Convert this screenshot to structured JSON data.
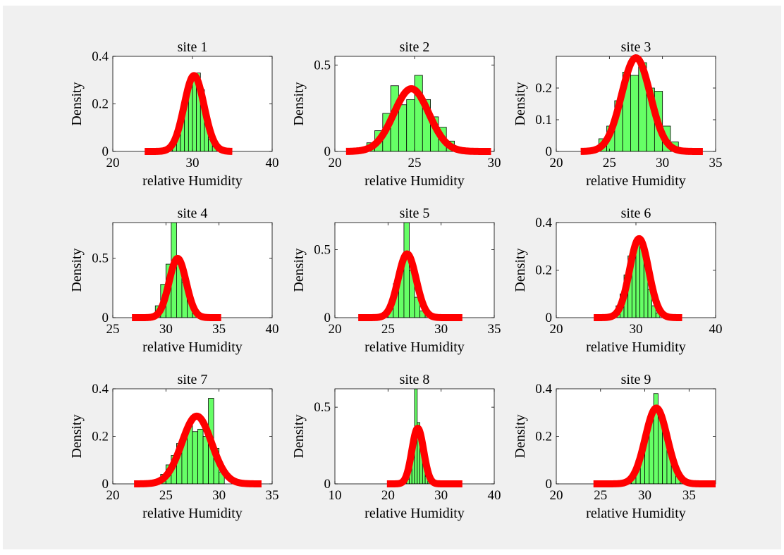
{
  "figure": {
    "background": "#f0f0f0",
    "colors": {
      "histogram_fill": "#66ff66",
      "histogram_edge": "#000000",
      "fit_line": "#ff0000",
      "axes_bg": "#ffffff"
    }
  },
  "chart_data": [
    {
      "type": "bar",
      "title": "site 1",
      "xlabel": "relative Humidity",
      "ylabel": "Density",
      "xlim": [
        20,
        40
      ],
      "ylim": [
        0,
        0.4
      ],
      "xticks": [
        20,
        30,
        40
      ],
      "yticks": [
        0,
        0.2,
        0.4
      ],
      "ytick_labels": [
        "0",
        "0.2",
        "0.4"
      ],
      "histogram": {
        "edges": [
          26.5,
          27,
          27.5,
          28,
          28.5,
          29,
          29.5,
          30,
          30.5,
          31,
          31.5,
          32,
          32.5,
          33
        ],
        "values": [
          0.01,
          0.02,
          0.05,
          0.1,
          0.16,
          0.22,
          0.27,
          0.3,
          0.33,
          0.26,
          0.13,
          0.05,
          0.02
        ]
      },
      "fit": {
        "type": "normal",
        "mean": 30.2,
        "std": 1.25,
        "x_range": [
          24,
          35
        ]
      }
    },
    {
      "type": "bar",
      "title": "site 2",
      "xlabel": "relative Humidity",
      "ylabel": "Density",
      "xlim": [
        20,
        30
      ],
      "ylim": [
        0,
        0.55
      ],
      "xticks": [
        20,
        25,
        30
      ],
      "yticks": [
        0,
        0.5
      ],
      "ytick_labels": [
        "0",
        "0.5"
      ],
      "histogram": {
        "edges": [
          21.5,
          22,
          22.5,
          23,
          23.5,
          24,
          24.5,
          25,
          25.5,
          26,
          26.5,
          27,
          27.5,
          28
        ],
        "values": [
          0.02,
          0.05,
          0.12,
          0.22,
          0.38,
          0.27,
          0.3,
          0.44,
          0.3,
          0.2,
          0.14,
          0.06,
          0.02
        ]
      },
      "fit": {
        "type": "normal",
        "mean": 24.8,
        "std": 1.1,
        "x_range": [
          20.7,
          29.8
        ]
      }
    },
    {
      "type": "bar",
      "title": "site 3",
      "xlabel": "relative Humidity",
      "ylabel": "Density",
      "xlim": [
        20,
        35
      ],
      "ylim": [
        0,
        0.3
      ],
      "xticks": [
        20,
        25,
        30,
        35
      ],
      "yticks": [
        0,
        0.1,
        0.2
      ],
      "ytick_labels": [
        "0",
        "0.1",
        "0.2"
      ],
      "histogram": {
        "edges": [
          24,
          24.75,
          25.5,
          26.25,
          27,
          27.75,
          28.5,
          29.25,
          30,
          30.75,
          31.5
        ],
        "values": [
          0.04,
          0.08,
          0.16,
          0.25,
          0.24,
          0.28,
          0.2,
          0.19,
          0.08,
          0.03
        ]
      },
      "fit": {
        "type": "normal",
        "mean": 27.5,
        "std": 1.35,
        "x_range": [
          22.3,
          33.8
        ]
      }
    },
    {
      "type": "bar",
      "title": "site 4",
      "xlabel": "relative Humidity",
      "ylabel": "Density",
      "xlim": [
        25,
        40
      ],
      "ylim": [
        0,
        0.8
      ],
      "xticks": [
        25,
        30,
        35,
        40
      ],
      "yticks": [
        0,
        0.5
      ],
      "ytick_labels": [
        "0",
        "0.5"
      ],
      "histogram": {
        "edges": [
          28.5,
          29,
          29.5,
          30,
          30.5,
          31,
          31.5,
          32,
          32.5,
          33,
          33.5
        ],
        "values": [
          0.03,
          0.1,
          0.28,
          0.45,
          0.8,
          0.45,
          0.3,
          0.15,
          0.06,
          0.02
        ]
      },
      "fit": {
        "type": "normal",
        "mean": 31.1,
        "std": 0.8,
        "x_range": [
          26.8,
          35.2
        ]
      }
    },
    {
      "type": "bar",
      "title": "site 5",
      "xlabel": "relative Humidity",
      "ylabel": "Density",
      "xlim": [
        20,
        35
      ],
      "ylim": [
        0,
        0.7
      ],
      "xticks": [
        20,
        25,
        30,
        35
      ],
      "yticks": [
        0,
        0.5
      ],
      "ytick_labels": [
        "0",
        "0.5"
      ],
      "histogram": {
        "edges": [
          24.5,
          25,
          25.5,
          26,
          26.5,
          27,
          27.5,
          28,
          28.5,
          29
        ],
        "values": [
          0.03,
          0.1,
          0.25,
          0.38,
          0.7,
          0.35,
          0.15,
          0.05,
          0.02
        ]
      },
      "fit": {
        "type": "normal",
        "mean": 26.8,
        "std": 0.85,
        "x_range": [
          22.2,
          32
        ]
      }
    },
    {
      "type": "bar",
      "title": "site 6",
      "xlabel": "relative Humidity",
      "ylabel": "Density",
      "xlim": [
        20,
        40
      ],
      "ylim": [
        0,
        0.4
      ],
      "xticks": [
        20,
        30,
        40
      ],
      "yticks": [
        0,
        0.2,
        0.4
      ],
      "ytick_labels": [
        "0",
        "0.2",
        "0.4"
      ],
      "histogram": {
        "edges": [
          27,
          27.5,
          28,
          28.5,
          29,
          29.5,
          30,
          30.5,
          31,
          31.5,
          32,
          32.5,
          33
        ],
        "values": [
          0.02,
          0.05,
          0.1,
          0.18,
          0.26,
          0.3,
          0.33,
          0.32,
          0.22,
          0.12,
          0.05,
          0.02
        ]
      },
      "fit": {
        "type": "normal",
        "mean": 30.4,
        "std": 1.2,
        "x_range": [
          24.7,
          35.8
        ]
      }
    },
    {
      "type": "bar",
      "title": "site 7",
      "xlabel": "relative Humidity",
      "ylabel": "Density",
      "xlim": [
        20,
        35
      ],
      "ylim": [
        0,
        0.4
      ],
      "xticks": [
        20,
        25,
        30,
        35
      ],
      "yticks": [
        0,
        0.2,
        0.4
      ],
      "ytick_labels": [
        "0",
        "0.2",
        "0.4"
      ],
      "histogram": {
        "edges": [
          24.5,
          25,
          25.5,
          26,
          26.5,
          27,
          27.5,
          28,
          28.5,
          29,
          29.5,
          30,
          30.5
        ],
        "values": [
          0.04,
          0.08,
          0.12,
          0.17,
          0.21,
          0.26,
          0.22,
          0.23,
          0.2,
          0.36,
          0.15,
          0.05
        ]
      },
      "fit": {
        "type": "normal",
        "mean": 27.9,
        "std": 1.4,
        "x_range": [
          22,
          34
        ]
      }
    },
    {
      "type": "bar",
      "title": "site 8",
      "xlabel": "relative Humidity",
      "ylabel": "Density",
      "xlim": [
        10,
        40
      ],
      "ylim": [
        0,
        0.62
      ],
      "xticks": [
        10,
        20,
        30,
        40
      ],
      "yticks": [
        0,
        0.5
      ],
      "ytick_labels": [
        "0",
        "0.5"
      ],
      "histogram": {
        "edges": [
          23.5,
          24,
          24.5,
          25,
          25.5,
          26,
          26.5,
          27,
          27.5,
          28
        ],
        "values": [
          0.03,
          0.1,
          0.3,
          0.62,
          0.4,
          0.28,
          0.15,
          0.05,
          0.02
        ]
      },
      "fit": {
        "type": "normal",
        "mean": 25.6,
        "std": 1.1,
        "x_range": [
          19.8,
          34
        ]
      }
    },
    {
      "type": "bar",
      "title": "site 9",
      "xlabel": "relative Humidity",
      "ylabel": "Density",
      "xlim": [
        20,
        38
      ],
      "ylim": [
        0,
        0.4
      ],
      "xticks": [
        20,
        25,
        30,
        35
      ],
      "yticks": [
        0,
        0.2,
        0.4
      ],
      "ytick_labels": [
        "0",
        "0.2",
        "0.4"
      ],
      "histogram": {
        "edges": [
          28,
          28.5,
          29,
          29.5,
          30,
          30.5,
          31,
          31.5,
          32,
          32.5,
          33,
          33.5,
          34,
          34.5,
          35
        ],
        "values": [
          0.02,
          0.05,
          0.1,
          0.16,
          0.24,
          0.3,
          0.38,
          0.29,
          0.22,
          0.14,
          0.08,
          0.04,
          0.02,
          0.01
        ]
      },
      "fit": {
        "type": "normal",
        "mean": 31.3,
        "std": 1.25,
        "x_range": [
          24.2,
          38
        ]
      }
    }
  ]
}
